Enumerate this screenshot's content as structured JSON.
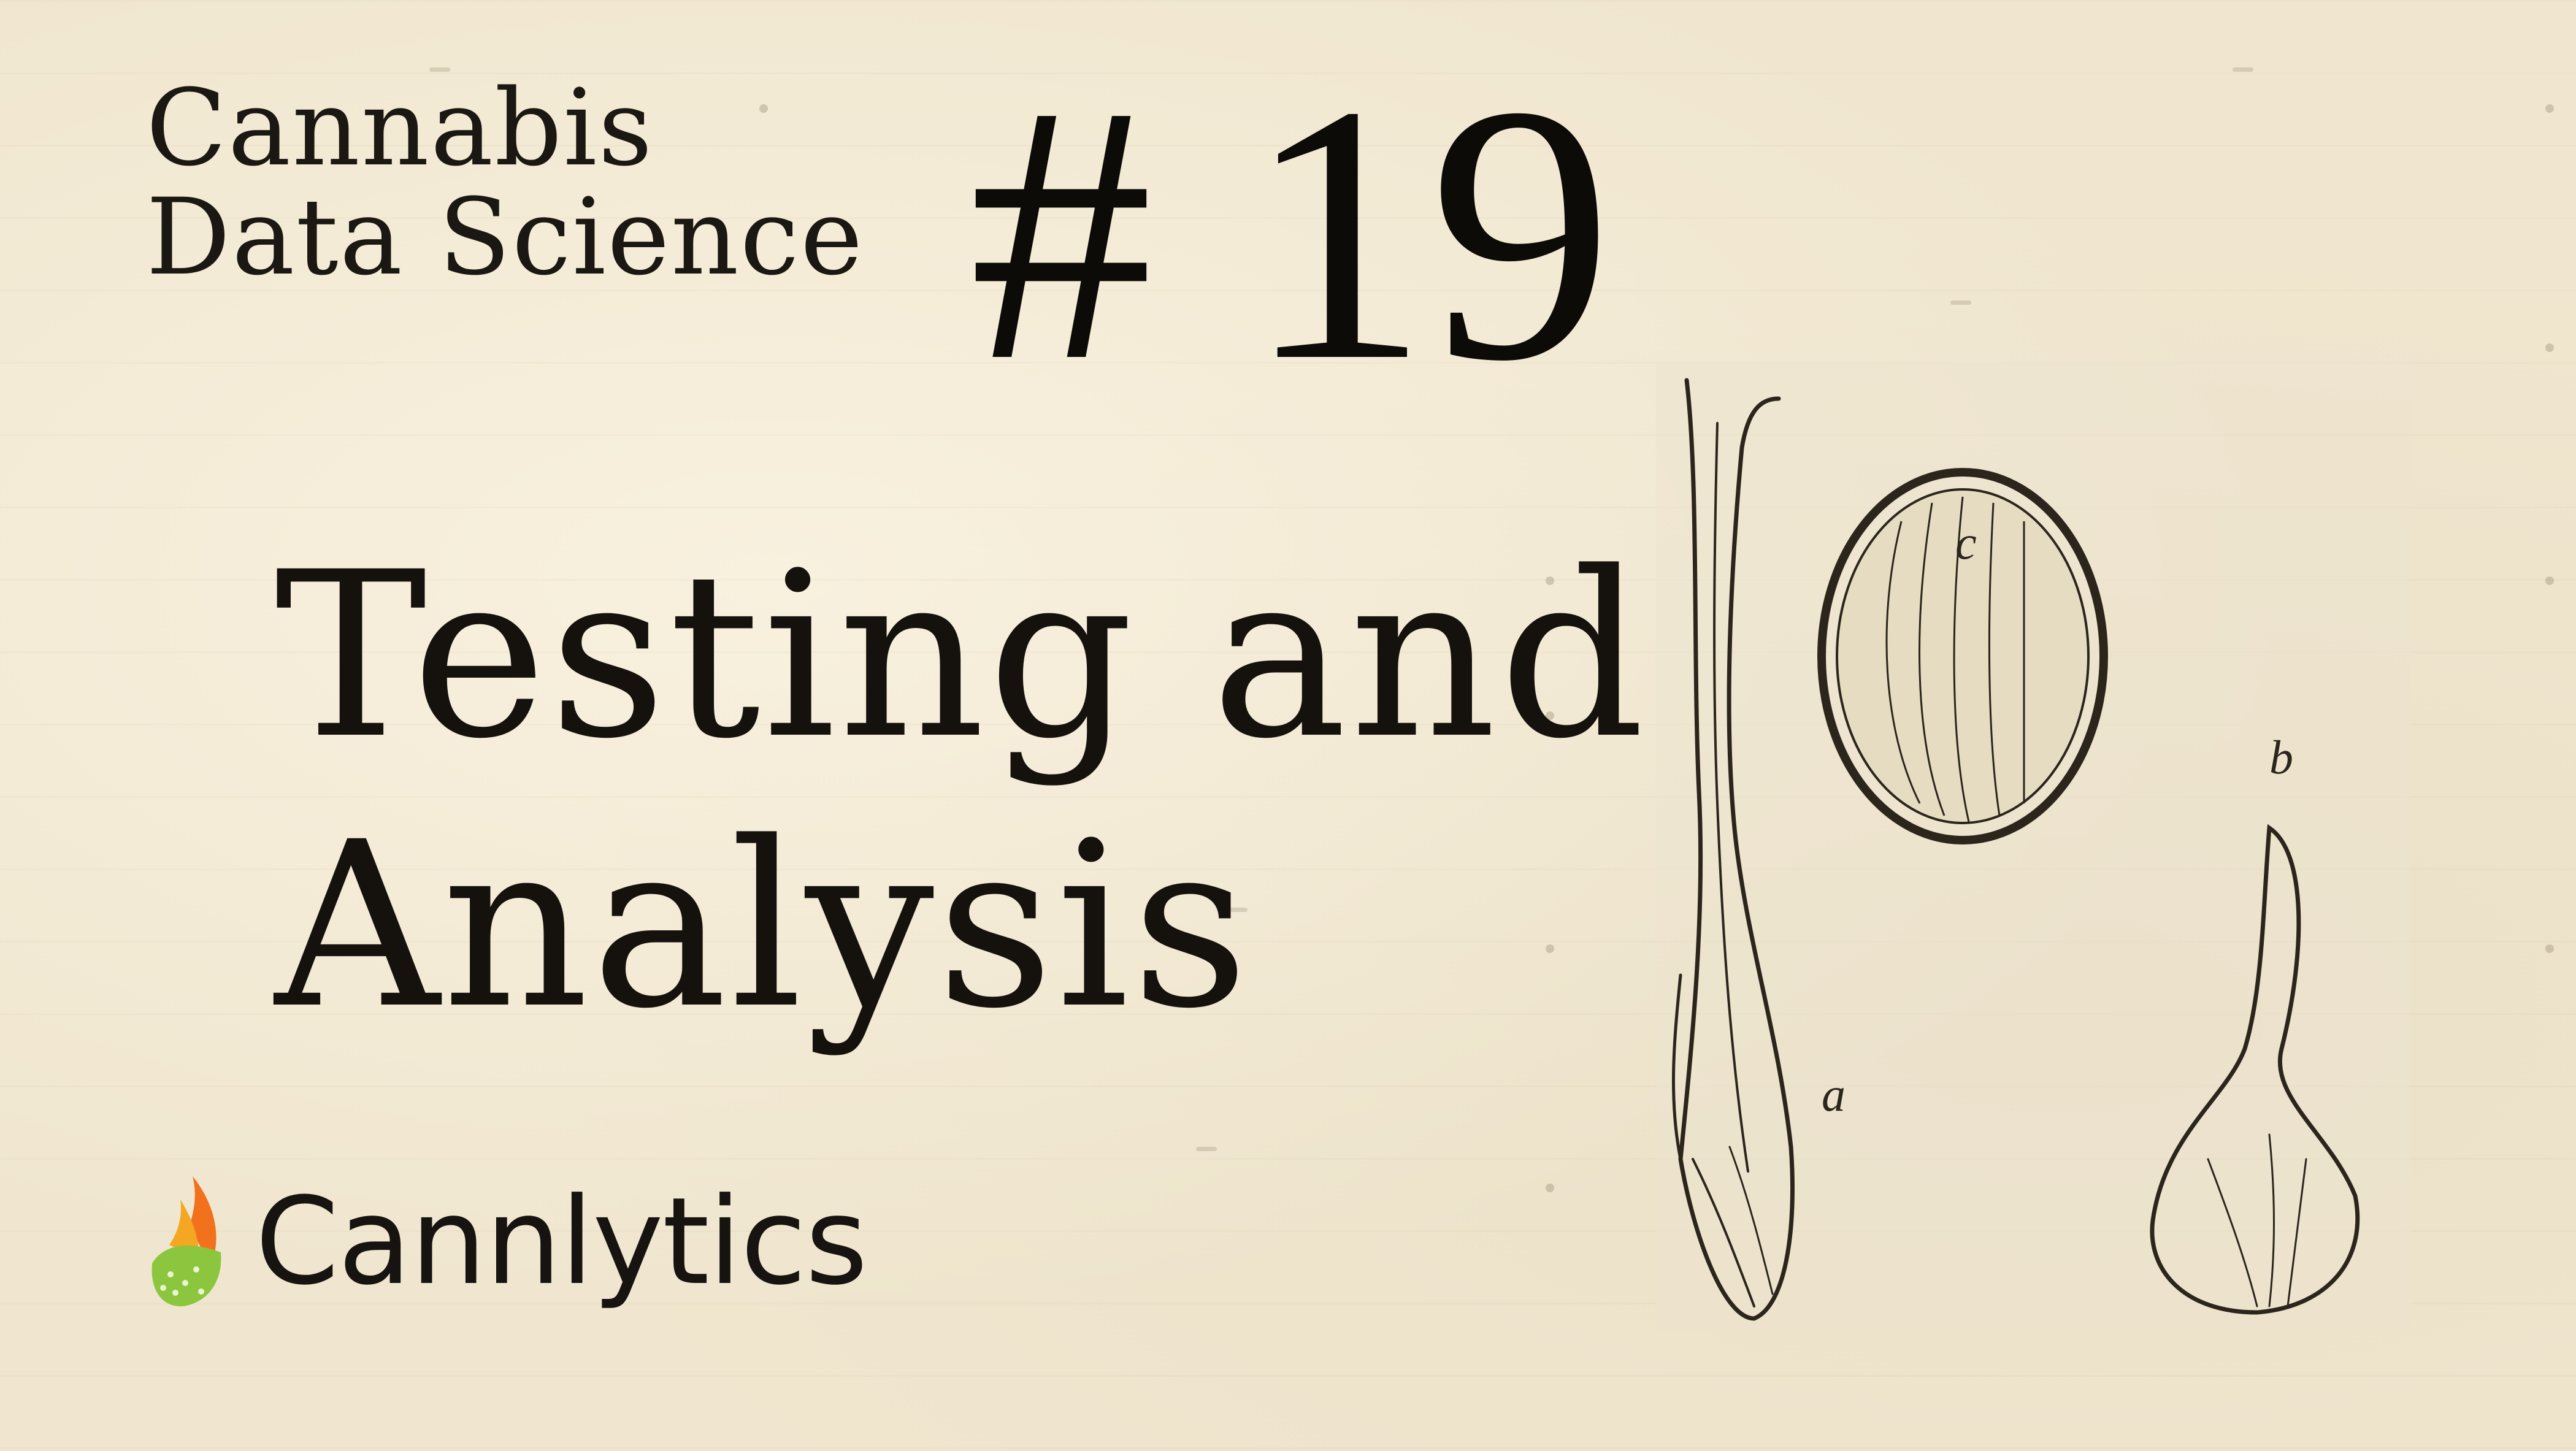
{
  "series": {
    "line1": "Cannabis",
    "line2": "Data Science"
  },
  "episode": {
    "number_label": "# 19",
    "title_line1": "Testing and",
    "title_line2": "Analysis"
  },
  "brand": {
    "name": "Cannlytics",
    "logo_icon": "flame-leaf-icon",
    "logo_colors": [
      "#f2711c",
      "#f5a623",
      "#8cc63f"
    ]
  },
  "illustration": {
    "icon": "botanical-seed-illustration",
    "labels": {
      "a": "a",
      "b": "b",
      "c": "c"
    }
  },
  "colors": {
    "background": "#f0e6cf",
    "text": "#15120e"
  }
}
